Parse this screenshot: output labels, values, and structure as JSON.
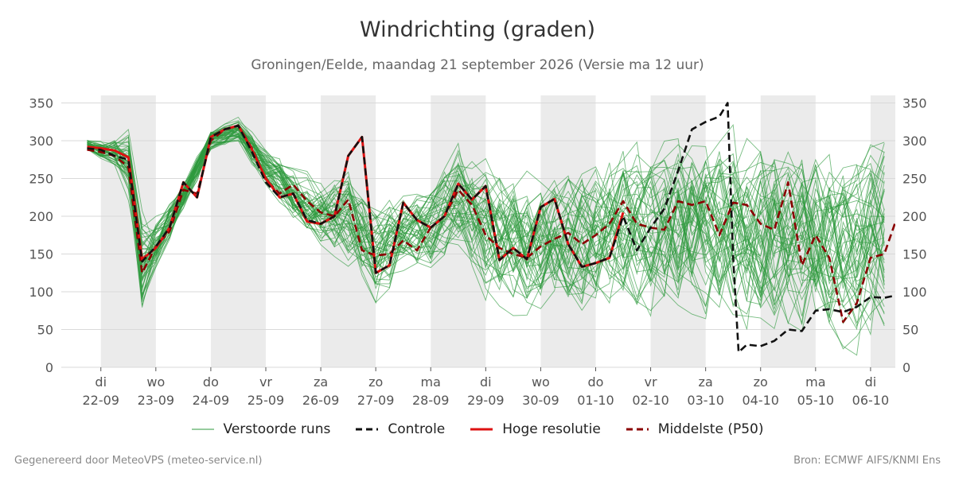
{
  "title": "Windrichting (graden)",
  "subtitle": "Groningen/Eelde, maandag 21 september 2026 (Versie ma 12 uur)",
  "footer_left": "Gegenereerd door MeteoVPS (meteo-service.nl)",
  "footer_right": "Bron: ECMWF AIFS/KNMI Ens",
  "colors": {
    "ensemble": "#2e9a3e",
    "control": "#111111",
    "highres": "#dd1111",
    "median": "#8b0000",
    "night_band": "#ebebeb",
    "grid": "#d9d9d9"
  },
  "legend": [
    {
      "key": "ensemble",
      "label": "Verstoorde runs"
    },
    {
      "key": "control",
      "label": "Controle"
    },
    {
      "key": "highres",
      "label": "Hoge resolutie"
    },
    {
      "key": "median",
      "label": "Middelste (P50)"
    }
  ],
  "chart_data": {
    "type": "line",
    "ylim": [
      0,
      360
    ],
    "yticks": [
      0,
      50,
      100,
      150,
      200,
      250,
      300,
      350
    ],
    "x_unit": "days since 22-09 00:00",
    "xlim": [
      -0.72,
      14.45
    ],
    "day_ticks": [
      {
        "x": 0,
        "day": "di",
        "date": "22-09"
      },
      {
        "x": 1,
        "day": "wo",
        "date": "23-09"
      },
      {
        "x": 2,
        "day": "do",
        "date": "24-09"
      },
      {
        "x": 3,
        "day": "vr",
        "date": "25-09"
      },
      {
        "x": 4,
        "day": "za",
        "date": "26-09"
      },
      {
        "x": 5,
        "day": "zo",
        "date": "27-09"
      },
      {
        "x": 6,
        "day": "ma",
        "date": "28-09"
      },
      {
        "x": 7,
        "day": "di",
        "date": "29-09"
      },
      {
        "x": 8,
        "day": "wo",
        "date": "30-09"
      },
      {
        "x": 9,
        "day": "do",
        "date": "01-10"
      },
      {
        "x": 10,
        "day": "vr",
        "date": "02-10"
      },
      {
        "x": 11,
        "day": "za",
        "date": "03-10"
      },
      {
        "x": 12,
        "day": "zo",
        "date": "04-10"
      },
      {
        "x": 13,
        "day": "ma",
        "date": "05-10"
      },
      {
        "x": 14,
        "day": "di",
        "date": "06-10"
      }
    ],
    "shaded_periods": [
      [
        0,
        1
      ],
      [
        2,
        3
      ],
      [
        4,
        5
      ],
      [
        6,
        7
      ],
      [
        8,
        9
      ],
      [
        10,
        11
      ],
      [
        12,
        13
      ],
      [
        14,
        14.45
      ]
    ],
    "ensemble_members": 50,
    "ensemble_envelope": {
      "x": [
        -0.25,
        0,
        0.25,
        0.5,
        0.75,
        1,
        1.5,
        2,
        2.5,
        3,
        3.5,
        4,
        4.5,
        5,
        5.5,
        6,
        6.5,
        7,
        7.5,
        8,
        8.5,
        9,
        9.5,
        10,
        10.5,
        11,
        11.5,
        12,
        12.5,
        13,
        13.5,
        14,
        14.45
      ],
      "mid": [
        295,
        288,
        285,
        270,
        135,
        165,
        225,
        300,
        315,
        265,
        230,
        205,
        200,
        150,
        175,
        180,
        220,
        180,
        165,
        160,
        165,
        175,
        190,
        180,
        185,
        185,
        180,
        175,
        170,
        160,
        155,
        165,
        180
      ],
      "spread": [
        12,
        15,
        25,
        60,
        90,
        45,
        25,
        20,
        20,
        35,
        45,
        55,
        80,
        90,
        70,
        75,
        90,
        120,
        120,
        120,
        125,
        130,
        140,
        150,
        160,
        165,
        170,
        170,
        170,
        170,
        170,
        170,
        170
      ]
    },
    "series": [
      {
        "name": "Controle",
        "key": "control",
        "style": "dashed",
        "x": [
          -0.25,
          0,
          0.25,
          0.5,
          0.75,
          1,
          1.25,
          1.5,
          1.75,
          2,
          2.25,
          2.5,
          2.75,
          3,
          3.25,
          3.5,
          3.75,
          4,
          4.25,
          4.5,
          4.75,
          5,
          5.25,
          5.5,
          5.75,
          6,
          6.25,
          6.5,
          6.75,
          7,
          7.25,
          7.5,
          7.75,
          8,
          8.25,
          8.5,
          8.75,
          9,
          9.25,
          9.5,
          9.75,
          10,
          10.25,
          10.5,
          10.75,
          11,
          11.25,
          11.4,
          11.5,
          11.6,
          11.75,
          12,
          12.25,
          12.5,
          12.75,
          13,
          13.25,
          13.5,
          13.75,
          14,
          14.25,
          14.45
        ],
        "y": [
          290,
          288,
          280,
          275,
          140,
          160,
          185,
          245,
          225,
          305,
          315,
          320,
          285,
          245,
          225,
          230,
          195,
          190,
          200,
          280,
          305,
          125,
          135,
          218,
          195,
          185,
          200,
          243,
          222,
          240,
          142,
          158,
          143,
          212,
          223,
          163,
          133,
          138,
          145,
          200,
          155,
          185,
          210,
          260,
          315,
          325,
          332,
          350,
          145,
          20,
          30,
          28,
          35,
          50,
          48,
          75,
          77,
          73,
          80,
          93,
          92,
          95
        ]
      },
      {
        "name": "Hoge resolutie",
        "key": "highres",
        "style": "solid",
        "x": [
          -0.25,
          0,
          0.25,
          0.5,
          0.75,
          1,
          1.25,
          1.5,
          1.75,
          2,
          2.25,
          2.5,
          2.75,
          3,
          3.25,
          3.5,
          3.75,
          4,
          4.25,
          4.5,
          4.75,
          5,
          5.25,
          5.5,
          5.75,
          6,
          6.25,
          6.5,
          6.75,
          7,
          7.25,
          7.5,
          7.75,
          8,
          8.25,
          8.5,
          8.75,
          9,
          9.25,
          9.5
        ],
        "y": [
          292,
          290,
          287,
          278,
          143,
          158,
          185,
          245,
          225,
          305,
          315,
          320,
          288,
          250,
          225,
          230,
          193,
          190,
          200,
          280,
          305,
          125,
          135,
          218,
          195,
          185,
          200,
          243,
          222,
          240,
          142,
          158,
          143,
          212,
          223,
          163,
          133,
          138,
          145,
          205
        ]
      },
      {
        "name": "Middelste (P50)",
        "key": "median",
        "style": "dashed",
        "x": [
          -0.25,
          0,
          0.25,
          0.5,
          0.75,
          1,
          1.25,
          1.5,
          1.75,
          2,
          2.25,
          2.5,
          2.75,
          3,
          3.25,
          3.5,
          3.75,
          4,
          4.25,
          4.5,
          4.75,
          5,
          5.25,
          5.5,
          5.75,
          6,
          6.25,
          6.5,
          6.75,
          7,
          7.25,
          7.5,
          7.75,
          8,
          8.25,
          8.5,
          8.75,
          9,
          9.25,
          9.5,
          9.75,
          10,
          10.25,
          10.5,
          10.75,
          11,
          11.25,
          11.5,
          11.75,
          12,
          12.25,
          12.5,
          12.75,
          13,
          13.25,
          13.5,
          13.75,
          14,
          14.25,
          14.45
        ],
        "y": [
          288,
          285,
          280,
          265,
          125,
          160,
          180,
          235,
          230,
          300,
          315,
          320,
          290,
          248,
          230,
          242,
          220,
          205,
          200,
          222,
          155,
          148,
          150,
          168,
          155,
          185,
          200,
          235,
          215,
          175,
          158,
          150,
          145,
          160,
          170,
          178,
          163,
          175,
          190,
          220,
          190,
          185,
          182,
          220,
          215,
          220,
          175,
          218,
          215,
          190,
          182,
          245,
          135,
          175,
          145,
          60,
          85,
          145,
          150,
          192
        ]
      }
    ]
  }
}
